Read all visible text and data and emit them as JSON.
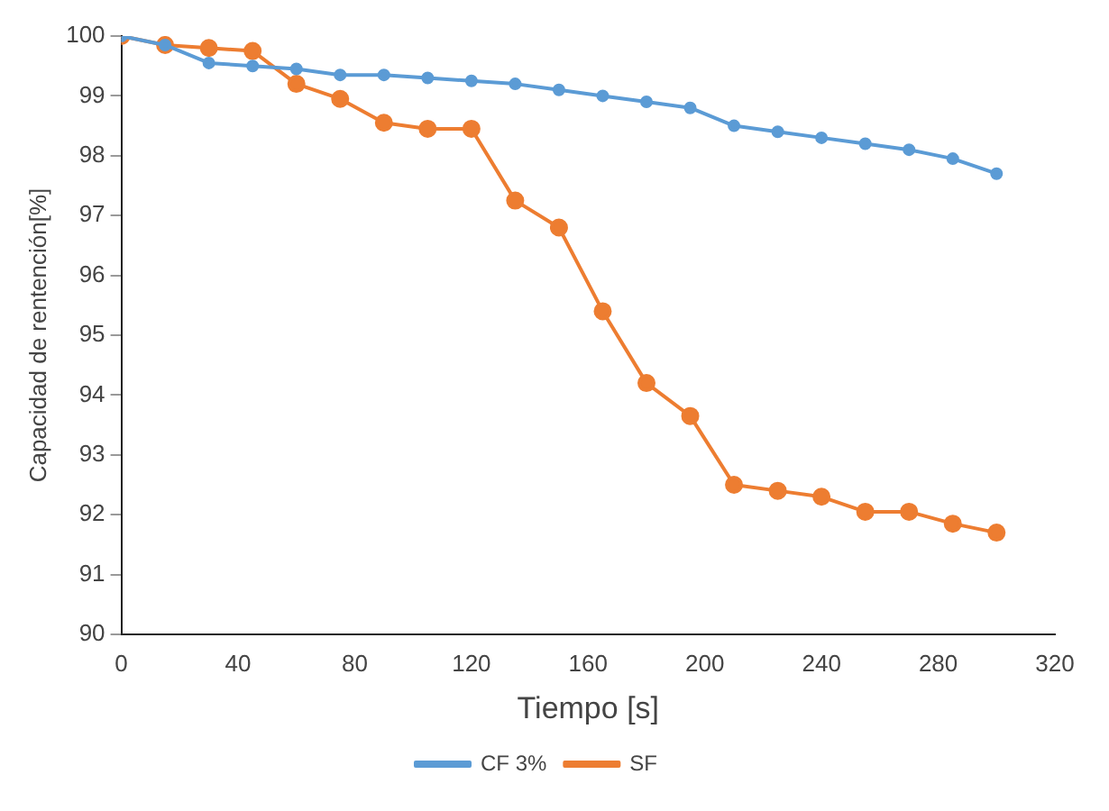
{
  "chart_data": {
    "type": "line",
    "xlabel": "Tiempo [s]",
    "ylabel": "Capacidad de rentención[%]",
    "x": [
      0,
      15,
      30,
      45,
      60,
      75,
      90,
      105,
      120,
      135,
      150,
      165,
      180,
      195,
      210,
      225,
      240,
      255,
      270,
      285,
      300
    ],
    "series": [
      {
        "name": "CF 3%",
        "color": "#5b9bd5",
        "values": [
          100,
          99.85,
          99.55,
          99.5,
          99.45,
          99.35,
          99.35,
          99.3,
          99.25,
          99.2,
          99.1,
          99.0,
          98.9,
          98.8,
          98.5,
          98.4,
          98.3,
          98.2,
          98.1,
          97.95,
          97.7
        ]
      },
      {
        "name": "SF",
        "color": "#ed7d31",
        "values": [
          100,
          99.85,
          99.8,
          99.75,
          99.2,
          98.95,
          98.55,
          98.45,
          98.45,
          97.25,
          96.8,
          95.4,
          94.2,
          93.65,
          92.5,
          92.4,
          92.3,
          92.05,
          92.05,
          91.85,
          91.7
        ]
      }
    ],
    "xlim": [
      0,
      320
    ],
    "xticks": [
      0,
      40,
      80,
      120,
      160,
      200,
      240,
      280,
      320
    ],
    "ylim": [
      90,
      100
    ],
    "yticks": [
      90,
      91,
      92,
      93,
      94,
      95,
      96,
      97,
      98,
      99,
      100
    ],
    "grid": false,
    "legend": "bottom",
    "marker": "circle",
    "line_style": "solid"
  }
}
